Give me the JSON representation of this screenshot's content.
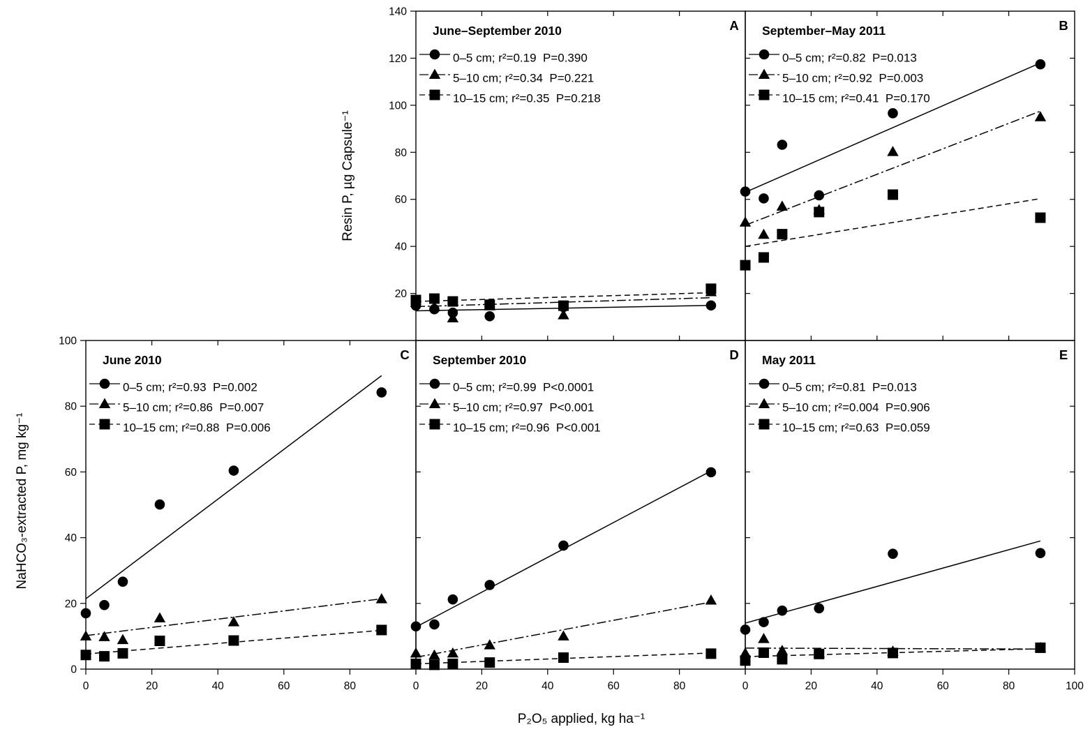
{
  "axes": {
    "top_ylabel": "Resin P, µg Capsule⁻¹",
    "bottom_ylabel": "NaHCO₃-extracted P, mg kg⁻¹",
    "xlabel": "P₂O₅ applied, kg ha⁻¹"
  },
  "chart_data": [
    {
      "panel": "A",
      "type": "scatter",
      "title": "June–September 2010",
      "x": [
        0,
        5.6,
        11.2,
        22.4,
        44.8,
        89.6
      ],
      "xlim": [
        0,
        100
      ],
      "ylim": [
        0,
        140
      ],
      "xticks": [],
      "yticks": [
        20,
        40,
        60,
        80,
        100,
        120,
        140
      ],
      "series": [
        {
          "name": "0–5 cm; r²=0.19  P=0.390",
          "marker": "circle",
          "line": "solid",
          "values": [
            14.8,
            13.3,
            11.8,
            10.3,
            14.2,
            14.9
          ],
          "fit": [
            [
              0,
              12.6
            ],
            [
              89.6,
              14.9
            ]
          ]
        },
        {
          "name": "5–10 cm; r²=0.34  P=0.221",
          "marker": "triangle",
          "line": "dash-dot",
          "values": [
            16.0,
            14.2,
            9.5,
            14.6,
            10.8,
            20.6
          ],
          "fit": [
            [
              0,
              14.4
            ],
            [
              89.6,
              18.2
            ]
          ]
        },
        {
          "name": "10–15 cm; r²=0.35  P=0.218",
          "marker": "square",
          "line": "dashed",
          "values": [
            17.2,
            17.8,
            16.6,
            15.2,
            14.8,
            22.0
          ],
          "fit": [
            [
              0,
              16.6
            ],
            [
              89.6,
              20.3
            ]
          ]
        }
      ]
    },
    {
      "panel": "B",
      "type": "scatter",
      "title": "September–May 2011",
      "x": [
        0,
        5.6,
        11.2,
        22.4,
        44.8,
        89.6
      ],
      "xlim": [
        0,
        100
      ],
      "ylim": [
        0,
        140
      ],
      "xticks": [],
      "yticks": [],
      "series": [
        {
          "name": "0–5 cm; r²=0.82  P=0.013",
          "marker": "circle",
          "line": "solid",
          "values": [
            63.3,
            60.4,
            83.2,
            61.7,
            96.6,
            117.4
          ],
          "fit": [
            [
              0,
              63.0
            ],
            [
              89.6,
              118.0
            ]
          ]
        },
        {
          "name": "5–10 cm; r²=0.92  P=0.003",
          "marker": "triangle",
          "line": "dash-dot",
          "values": [
            50.2,
            45.0,
            57.0,
            55.5,
            80.2,
            95.0
          ],
          "fit": [
            [
              0,
              49.0
            ],
            [
              89.6,
              97.5
            ]
          ]
        },
        {
          "name": "10–15 cm; r²=0.41  P=0.170",
          "marker": "square",
          "line": "dashed",
          "values": [
            32.0,
            35.3,
            45.2,
            54.6,
            62.0,
            52.2
          ],
          "fit": [
            [
              0,
              40.0
            ],
            [
              89.6,
              60.3
            ]
          ]
        }
      ]
    },
    {
      "panel": "C",
      "type": "scatter",
      "title": "June 2010",
      "x": [
        0,
        5.6,
        11.2,
        22.4,
        44.8,
        89.6
      ],
      "xlim": [
        0,
        100
      ],
      "ylim": [
        0,
        100
      ],
      "xticks": [
        0,
        20,
        40,
        60,
        80
      ],
      "yticks": [
        0,
        20,
        40,
        60,
        80,
        100
      ],
      "series": [
        {
          "name": "0–5 cm; r²=0.93  P=0.002",
          "marker": "circle",
          "line": "solid",
          "values": [
            17.0,
            19.5,
            26.6,
            50.1,
            60.4,
            84.2
          ],
          "fit": [
            [
              0,
              21.4
            ],
            [
              89.6,
              89.3
            ]
          ]
        },
        {
          "name": "5–10 cm; r²=0.86  P=0.007",
          "marker": "triangle",
          "line": "dash-dot",
          "values": [
            10.0,
            9.8,
            8.9,
            15.5,
            14.3,
            21.3
          ],
          "fit": [
            [
              0,
              10.2
            ],
            [
              89.6,
              21.4
            ]
          ]
        },
        {
          "name": "10–15 cm; r²=0.88  P=0.006",
          "marker": "square",
          "line": "dashed",
          "values": [
            4.3,
            3.9,
            4.8,
            8.6,
            8.7,
            11.9
          ],
          "fit": [
            [
              0,
              4.6
            ],
            [
              89.6,
              11.8
            ]
          ]
        }
      ]
    },
    {
      "panel": "D",
      "type": "scatter",
      "title": "September 2010",
      "x": [
        0,
        5.6,
        11.2,
        22.4,
        44.8,
        89.6
      ],
      "xlim": [
        0,
        100
      ],
      "ylim": [
        0,
        100
      ],
      "xticks": [
        0,
        20,
        40,
        60,
        80
      ],
      "yticks": [],
      "series": [
        {
          "name": "0–5 cm; r²=0.99  P<0.0001",
          "marker": "circle",
          "line": "solid",
          "values": [
            13.0,
            13.6,
            21.2,
            25.6,
            37.6,
            59.9
          ],
          "fit": [
            [
              0,
              12.8
            ],
            [
              89.6,
              60.3
            ]
          ]
        },
        {
          "name": "5–10 cm; r²=0.97  P<0.001",
          "marker": "triangle",
          "line": "dash-dot",
          "values": [
            4.8,
            4.2,
            4.8,
            7.3,
            10.0,
            20.9
          ],
          "fit": [
            [
              0,
              3.6
            ],
            [
              89.6,
              20.4
            ]
          ]
        },
        {
          "name": "10–15 cm; r²=0.96  P<0.001",
          "marker": "square",
          "line": "dashed",
          "values": [
            1.6,
            1.3,
            1.6,
            2.0,
            3.5,
            4.7
          ],
          "fit": [
            [
              0,
              1.6
            ],
            [
              89.6,
              4.9
            ]
          ]
        }
      ]
    },
    {
      "panel": "E",
      "type": "scatter",
      "title": "May 2011",
      "x": [
        0,
        5.6,
        11.2,
        22.4,
        44.8,
        89.6
      ],
      "xlim": [
        0,
        100
      ],
      "ylim": [
        0,
        100
      ],
      "xticks": [
        0,
        20,
        40,
        60,
        80,
        100
      ],
      "yticks": [],
      "series": [
        {
          "name": "0–5 cm; r²=0.81  P=0.013",
          "marker": "circle",
          "line": "solid",
          "values": [
            12.0,
            14.3,
            17.8,
            18.5,
            35.1,
            35.3
          ],
          "fit": [
            [
              0,
              14.0
            ],
            [
              89.6,
              39.0
            ]
          ]
        },
        {
          "name": "5–10 cm; r²=0.004  P=0.906",
          "marker": "triangle",
          "line": "dash-dot",
          "values": [
            4.8,
            9.2,
            5.6,
            4.8,
            5.4,
            6.5
          ],
          "fit": [
            [
              0,
              6.4
            ],
            [
              89.6,
              6.1
            ]
          ]
        },
        {
          "name": "10–15 cm; r²=0.63  P=0.059",
          "marker": "square",
          "line": "dashed",
          "values": [
            2.6,
            5.0,
            3.0,
            4.6,
            4.9,
            6.5
          ],
          "fit": [
            [
              0,
              3.8
            ],
            [
              89.6,
              6.2
            ]
          ]
        }
      ]
    }
  ]
}
